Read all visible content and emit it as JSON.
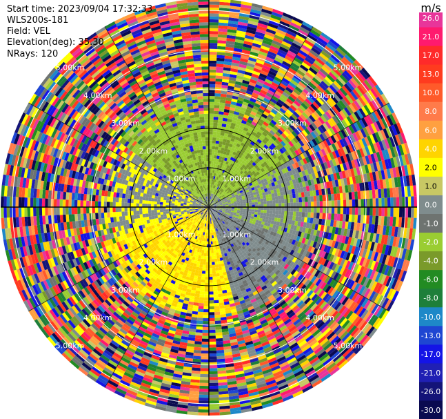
{
  "info": {
    "start_time": "Start time: 2023/09/04 17:32:33",
    "instrument": "WLS200s-181",
    "field": "Field: VEL",
    "elevation": "Elevation(deg): 35.30",
    "nrays": "NRays: 120"
  },
  "chart_data": {
    "type": "heatmap",
    "projection": "polar-ppi",
    "n_rays": 120,
    "range_rings_km": [
      1.0,
      2.0,
      3.0,
      4.0,
      5.0
    ],
    "range_labels": [
      "1.00km",
      "2.00km",
      "3.00km",
      "4.00km",
      "5.00km"
    ],
    "max_range_km": 5.3,
    "colorbar": {
      "unit": "m/s",
      "ticks": [
        "26.0",
        "21.0",
        "17.0",
        "13.0",
        "10.0",
        "8.0",
        "6.0",
        "4.0",
        "2.0",
        "1.0",
        "0.0",
        "-1.0",
        "-2.0",
        "-4.0",
        "-6.0",
        "-8.0",
        "-10.0",
        "-13.0",
        "-17.0",
        "-21.0",
        "-26.0",
        "-30.0"
      ],
      "colors": [
        "#e8359a",
        "#ff1a6e",
        "#ff2a2a",
        "#ff3b1f",
        "#ff5a2a",
        "#ff7b4a",
        "#ffa040",
        "#ffd400",
        "#ffff00",
        "#c8c864",
        "#7f8c8d",
        "#6e7370",
        "#9acd32",
        "#7a9a2a",
        "#228b22",
        "#1e7f3a",
        "#1e88c8",
        "#1e46d2",
        "#1414e6",
        "#2020b4",
        "#141478",
        "#0a0a50"
      ]
    },
    "near_field_pattern": {
      "north_sector": "green (-2.0 to -4.0)",
      "south_sector": "yellow (2.0 to 4.0)",
      "east_west": "grey (-1.0 to 1.0)",
      "far_field": "noise (all classes)"
    }
  }
}
